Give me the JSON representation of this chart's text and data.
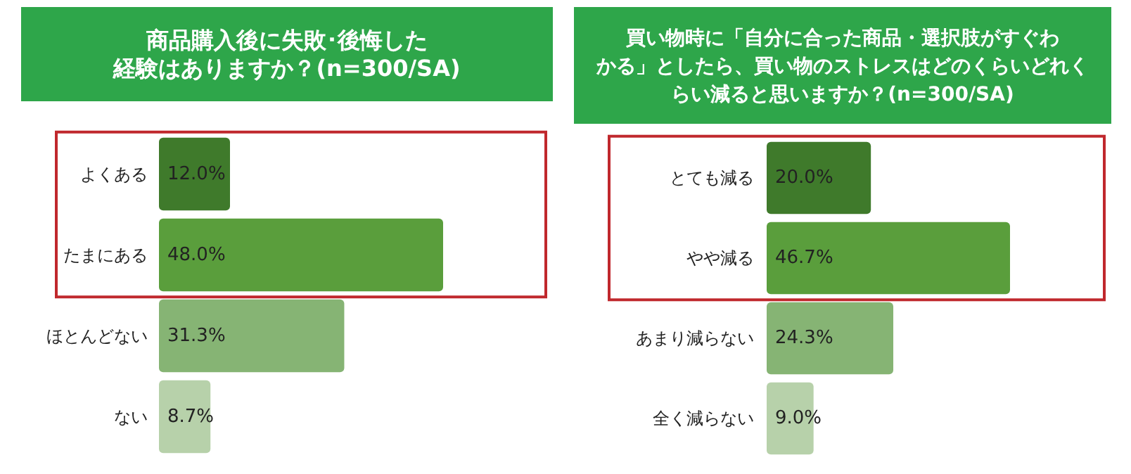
{
  "chart_data": [
    {
      "type": "bar",
      "orientation": "horizontal",
      "title": "商品購入後に失敗･後悔した経験はありますか？(n=300/SA)",
      "categories": [
        "よくある",
        "たまにある",
        "ほとんどない",
        "ない"
      ],
      "values": [
        12.0,
        48.0,
        31.3,
        8.7
      ],
      "value_labels": [
        "12.0%",
        "48.0%",
        "31.3%",
        "8.7%"
      ],
      "colors": [
        "#3f7a2b",
        "#5a9e3c",
        "#86b474",
        "#b7d1aa"
      ]
    },
    {
      "type": "bar",
      "orientation": "horizontal",
      "title": "買い物時に「自分に合った商品・選択肢がすぐわかる」としたら、買い物のストレスはどのくらいどれくらい減ると思いますか？(n=300/SA)",
      "categories": [
        "とても減る",
        "やや減る",
        "あまり減らない",
        "全く減らない"
      ],
      "values": [
        20.0,
        46.7,
        24.3,
        9.0
      ],
      "value_labels": [
        "20.0%",
        "46.7%",
        "24.3%",
        "9.0%"
      ],
      "colors": [
        "#3f7a2b",
        "#5a9e3c",
        "#86b474",
        "#b7d1aa"
      ]
    }
  ]
}
